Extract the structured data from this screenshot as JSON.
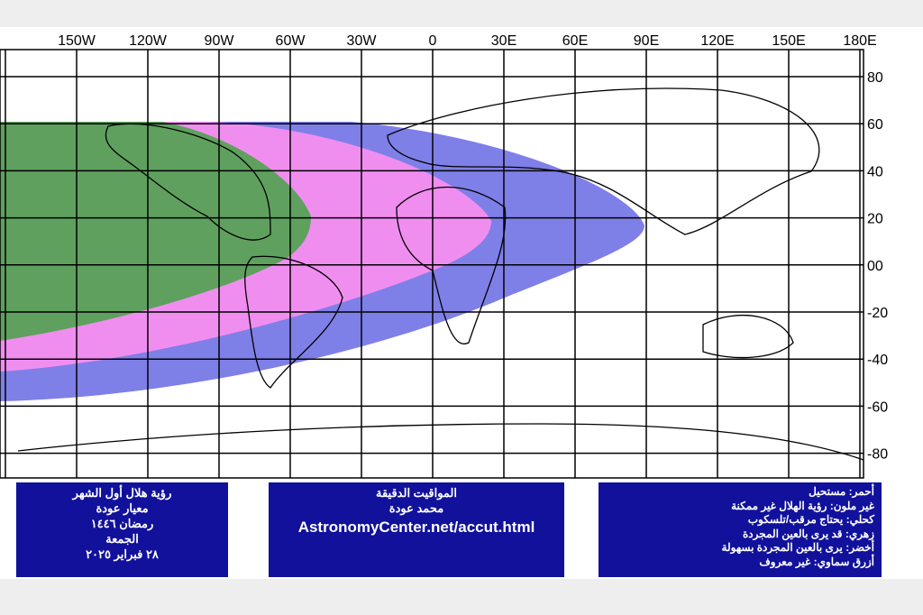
{
  "map": {
    "lon_labels": [
      "150W",
      "120W",
      "90W",
      "60W",
      "30W",
      "0",
      "30E",
      "60E",
      "90E",
      "120E",
      "150E",
      "180E"
    ],
    "lat_labels": [
      "80",
      "60",
      "40",
      "20",
      "00",
      "-20",
      "-40",
      "-60",
      "-80"
    ]
  },
  "boxes": {
    "left": [
      "رؤية هلال أول الشهر",
      "معيار عودة",
      "رمضان ١٤٤٦",
      "الجمعة",
      "٢٨ فبراير ٢٠٢٥"
    ],
    "center": [
      "المواقيت الدقيقة",
      "محمد عودة",
      "AstronomyCenter.net/accut.html"
    ],
    "right": [
      "أحمر: مستحيل",
      "غير ملون: رؤية الهلال غير ممكنة",
      "كحلي: يحتاج مرقب/تلسكوب",
      "زهري: قد يرى بالعين المجردة",
      "أخضر: يرى بالعين المجردة بسهولة",
      "أزرق سماوي: غير معروف"
    ]
  }
}
